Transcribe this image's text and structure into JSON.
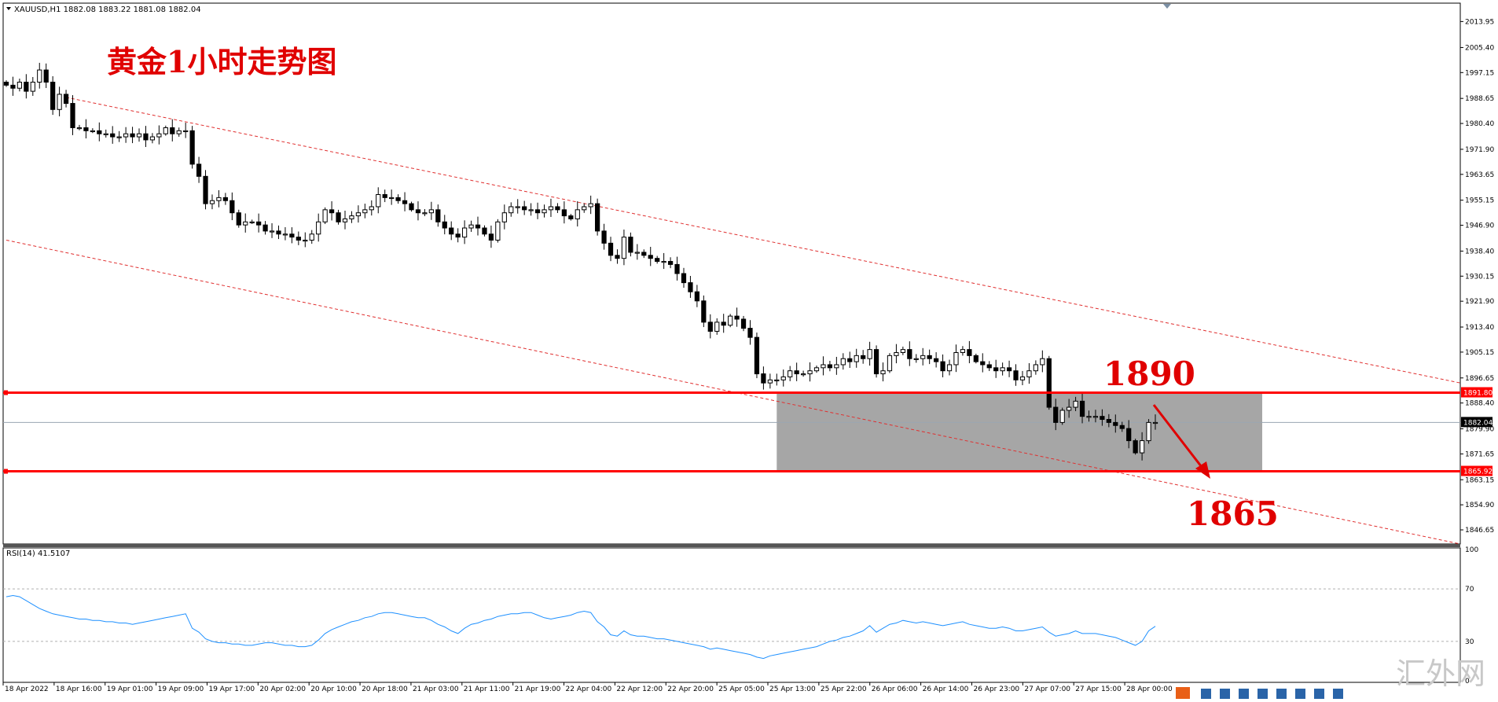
{
  "window": {
    "symbol_header": "XAUUSD,H1  1882.08 1883.22 1881.08 1882.04"
  },
  "chart_data": [
    {
      "type": "candlestick",
      "title": "黄金1小时走势图",
      "symbol": "XAUUSD",
      "timeframe": "H1",
      "ohlc_current": {
        "open": 1882.08,
        "high": 1883.22,
        "low": 1881.08,
        "close": 1882.04
      },
      "ylim": [
        1842,
        2020
      ],
      "y_ticks": [
        "2013.95",
        "2005.40",
        "1997.15",
        "1988.65",
        "1980.40",
        "1971.90",
        "1963.65",
        "1955.15",
        "1946.90",
        "1938.40",
        "1930.15",
        "1921.90",
        "1913.40",
        "1905.15",
        "1896.65",
        "1888.40",
        "1879.90",
        "1871.65",
        "1863.15",
        "1854.90",
        "1846.65"
      ],
      "x_ticks": [
        "18 Apr 2022",
        "18 Apr 16:00",
        "19 Apr 01:00",
        "19 Apr 09:00",
        "19 Apr 17:00",
        "20 Apr 02:00",
        "20 Apr 10:00",
        "20 Apr 18:00",
        "21 Apr 03:00",
        "21 Apr 11:00",
        "21 Apr 19:00",
        "22 Apr 04:00",
        "22 Apr 12:00",
        "22 Apr 20:00",
        "25 Apr 05:00",
        "25 Apr 13:00",
        "25 Apr 22:00",
        "26 Apr 06:00",
        "26 Apr 14:00",
        "26 Apr 23:00",
        "27 Apr 07:00",
        "27 Apr 15:00",
        "28 Apr 00:00"
      ],
      "close_path": [
        1993,
        1992,
        1994,
        1991,
        1994,
        1998,
        1994,
        1985,
        1990,
        1987,
        1979,
        1979,
        1978,
        1978,
        1977,
        1977,
        1976,
        1976,
        1977,
        1976,
        1977,
        1975,
        1976,
        1977,
        1979,
        1977,
        1978,
        1978,
        1967,
        1963,
        1954,
        1955,
        1956,
        1955,
        1951,
        1947,
        1948,
        1948,
        1947,
        1945,
        1945,
        1944,
        1944,
        1943,
        1942,
        1942,
        1944,
        1948,
        1952,
        1951,
        1948,
        1949,
        1950,
        1951,
        1952,
        1953,
        1957,
        1956,
        1956,
        1955,
        1954,
        1952,
        1951,
        1951,
        1952,
        1948,
        1946,
        1944,
        1943,
        1946,
        1947,
        1946,
        1944,
        1942,
        1948,
        1951,
        1953,
        1953,
        1952,
        1952,
        1951,
        1952,
        1953,
        1952,
        1950,
        1949,
        1952,
        1953,
        1954,
        1945,
        1941,
        1937,
        1936,
        1943,
        1938,
        1938,
        1937,
        1936,
        1935,
        1935,
        1934,
        1931,
        1928,
        1925,
        1922,
        1915,
        1912,
        1915,
        1914,
        1917,
        1916,
        1913,
        1910,
        1898,
        1895,
        1896,
        1896,
        1897,
        1899,
        1898,
        1898,
        1899,
        1900,
        1901,
        1900,
        1901,
        1903,
        1902,
        1904,
        1903,
        1906,
        1898,
        1899,
        1904,
        1905,
        1906,
        1903,
        1903,
        1904,
        1903,
        1902,
        1899,
        1901,
        1905,
        1906,
        1904,
        1902,
        1901,
        1900,
        1899,
        1900,
        1899,
        1896,
        1897,
        1899,
        1901,
        1903,
        1887,
        1882,
        1886,
        1887,
        1889,
        1884,
        1884,
        1884,
        1883,
        1882,
        1881,
        1880,
        1876,
        1872,
        1876,
        1882,
        1882
      ],
      "horizontal_levels": [
        {
          "value": 1891.8,
          "label": "1891.80",
          "color": "#ff0000"
        },
        {
          "value": 1865.92,
          "label": "1865.92",
          "color": "#ff0000"
        }
      ],
      "current_price_label": "1882.04",
      "channel_lines": [
        {
          "style": "dashed",
          "color": "#e03030"
        },
        {
          "style": "dashed",
          "color": "#e03030"
        }
      ],
      "target_zone": {
        "from": 1865.92,
        "to": 1891.8,
        "fill": "#a6a6a6"
      },
      "annotations": [
        {
          "text": "1890",
          "color": "#e00000"
        },
        {
          "text": "1865",
          "color": "#e00000"
        }
      ],
      "colors": {
        "bull_body": "#ffffff",
        "bear_body": "#000000",
        "wick": "#000000",
        "level_line": "#ff0000",
        "annotation": "#e00000"
      }
    },
    {
      "type": "line",
      "title": "RSI(14) 41.5107",
      "ylim": [
        0,
        100
      ],
      "y_ticks": [
        "100",
        "70",
        "30",
        "0"
      ],
      "levels": [
        70,
        30
      ],
      "series": [
        {
          "values": [
            64,
            65,
            64,
            61,
            58,
            55,
            53,
            51,
            50,
            49,
            48,
            47,
            47,
            46,
            46,
            45,
            45,
            44,
            44,
            43,
            44,
            45,
            46,
            47,
            48,
            49,
            50,
            51,
            40,
            37,
            32,
            30,
            29,
            29,
            28,
            28,
            27,
            27,
            28,
            29,
            29,
            28,
            27,
            27,
            26,
            26,
            27,
            31,
            36,
            39,
            41,
            43,
            45,
            46,
            48,
            49,
            51,
            52,
            52,
            51,
            50,
            49,
            48,
            48,
            46,
            43,
            41,
            38,
            36,
            40,
            43,
            44,
            46,
            47,
            49,
            50,
            51,
            51,
            52,
            52,
            50,
            48,
            47,
            48,
            49,
            50,
            52,
            53,
            52,
            45,
            41,
            35,
            34,
            38,
            35,
            34,
            34,
            33,
            32,
            32,
            31,
            30,
            29,
            28,
            27,
            26,
            24,
            25,
            24,
            23,
            22,
            21,
            20,
            18,
            17,
            19,
            20,
            21,
            22,
            23,
            24,
            25,
            26,
            28,
            30,
            31,
            33,
            34,
            36,
            38,
            42,
            37,
            40,
            43,
            44,
            46,
            45,
            44,
            45,
            44,
            43,
            42,
            43,
            44,
            45,
            43,
            42,
            41,
            40,
            40,
            41,
            40,
            38,
            38,
            39,
            40,
            41,
            37,
            34,
            35,
            36,
            38,
            36,
            36,
            36,
            35,
            34,
            33,
            31,
            29,
            27,
            30,
            38,
            41.5
          ],
          "color": "#1e90ff"
        }
      ]
    }
  ],
  "watermark": {
    "text": "汇外网"
  }
}
